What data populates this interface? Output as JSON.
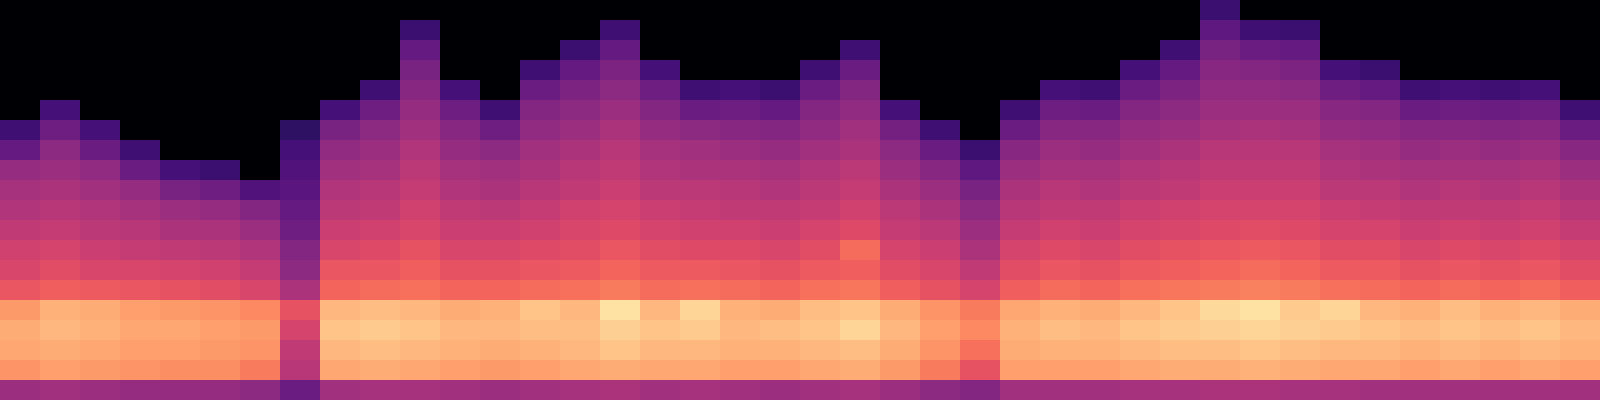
{
  "chart_data": {
    "type": "heatmap",
    "color": "magma",
    "tick_labels": false,
    "zlim": [
      -80,
      0
    ],
    "z": [
      [
        -80,
        -80,
        -80,
        -80,
        -80,
        -80,
        -63,
        -56,
        -46,
        -43,
        -41,
        -38,
        -35,
        -33,
        -29,
        -17,
        -14,
        -15,
        -18,
        -45
      ],
      [
        -80,
        -80,
        -80,
        -80,
        -80,
        -62,
        -54,
        -48,
        -45,
        -42,
        -40,
        -37,
        -34,
        -31,
        -27,
        -13,
        -12,
        -14,
        -16,
        -44
      ],
      [
        -80,
        -80,
        -80,
        -80,
        -80,
        -80,
        -62,
        -55,
        -47,
        -44,
        -41,
        -39,
        -36,
        -33,
        -28,
        -14,
        -13,
        -15,
        -17,
        -45
      ],
      [
        -80,
        -80,
        -80,
        -80,
        -80,
        -80,
        -80,
        -63,
        -55,
        -46,
        -43,
        -40,
        -37,
        -33,
        -29,
        -16,
        -15,
        -16,
        -18,
        -46
      ],
      [
        -80,
        -80,
        -80,
        -80,
        -80,
        -80,
        -80,
        -80,
        -62,
        -52,
        -45,
        -42,
        -38,
        -34,
        -30,
        -17,
        -15,
        -16,
        -19,
        -46
      ],
      [
        -80,
        -80,
        -80,
        -80,
        -80,
        -80,
        -80,
        -80,
        -64,
        -54,
        -46,
        -42,
        -39,
        -35,
        -31,
        -18,
        -16,
        -17,
        -19,
        -46
      ],
      [
        -80,
        -80,
        -80,
        -80,
        -80,
        -80,
        -80,
        -80,
        -80,
        -60,
        -50,
        -45,
        -41,
        -37,
        -33,
        -20,
        -17,
        -18,
        -22,
        -48
      ],
      [
        -80,
        -80,
        -80,
        -80,
        -80,
        -80,
        -66,
        -62,
        -60,
        -58,
        -56,
        -54,
        -50,
        -48,
        -42,
        -30,
        -34,
        -38,
        -40,
        -55
      ],
      [
        -80,
        -80,
        -80,
        -80,
        -80,
        -62,
        -52,
        -47,
        -44,
        -41,
        -39,
        -36,
        -33,
        -29,
        -26,
        -12,
        -10,
        -12,
        -15,
        -44
      ],
      [
        -80,
        -80,
        -80,
        -80,
        -63,
        -54,
        -48,
        -45,
        -43,
        -40,
        -38,
        -35,
        -32,
        -29,
        -25,
        -11,
        -9,
        -11,
        -14,
        -43
      ],
      [
        -80,
        -64,
        -56,
        -52,
        -49,
        -46,
        -44,
        -41,
        -39,
        -37,
        -35,
        -33,
        -30,
        -27,
        -24,
        -12,
        -10,
        -12,
        -15,
        -43
      ],
      [
        -80,
        -80,
        -80,
        -80,
        -62,
        -54,
        -49,
        -46,
        -43,
        -41,
        -38,
        -36,
        -33,
        -30,
        -26,
        -14,
        -12,
        -13,
        -16,
        -44
      ],
      [
        -80,
        -80,
        -80,
        -80,
        -80,
        -63,
        -54,
        -48,
        -44,
        -42,
        -39,
        -36,
        -33,
        -30,
        -26,
        -13,
        -12,
        -14,
        -17,
        -45
      ],
      [
        -80,
        -80,
        -80,
        -63,
        -55,
        -50,
        -47,
        -44,
        -42,
        -40,
        -37,
        -35,
        -32,
        -29,
        -25,
        -10,
        -11,
        -13,
        -16,
        -44
      ],
      [
        -80,
        -80,
        -64,
        -56,
        -51,
        -48,
        -45,
        -42,
        -40,
        -38,
        -35,
        -33,
        -31,
        -28,
        -24,
        -12,
        -11,
        -12,
        -15,
        -43
      ],
      [
        -80,
        -63,
        -56,
        -51,
        -48,
        -45,
        -42,
        -40,
        -38,
        -36,
        -34,
        -32,
        -29,
        -26,
        -22,
        -5,
        -8,
        -10,
        -14,
        -42
      ],
      [
        -80,
        -80,
        -80,
        -62,
        -54,
        -50,
        -46,
        -43,
        -41,
        -39,
        -36,
        -34,
        -31,
        -28,
        -25,
        -12,
        -10,
        -12,
        -15,
        -44
      ],
      [
        -80,
        -80,
        -80,
        -80,
        -63,
        -55,
        -48,
        -44,
        -42,
        -39,
        -37,
        -35,
        -32,
        -28,
        -24,
        -7,
        -9,
        -12,
        -15,
        -43
      ],
      [
        -80,
        -80,
        -80,
        -80,
        -62,
        -54,
        -49,
        -45,
        -42,
        -40,
        -38,
        -35,
        -32,
        -29,
        -25,
        -13,
        -12,
        -13,
        -16,
        -44
      ],
      [
        -80,
        -80,
        -80,
        -80,
        -64,
        -56,
        -50,
        -46,
        -43,
        -41,
        -38,
        -36,
        -33,
        -30,
        -26,
        -14,
        -11,
        -13,
        -16,
        -45
      ],
      [
        -80,
        -80,
        -80,
        -63,
        -55,
        -50,
        -47,
        -44,
        -41,
        -39,
        -37,
        -34,
        -31,
        -28,
        -24,
        -11,
        -10,
        -12,
        -15,
        -44
      ],
      [
        -80,
        -80,
        -63,
        -55,
        -50,
        -47,
        -44,
        -42,
        -39,
        -37,
        -35,
        -32,
        -25,
        -27,
        -23,
        -10,
        -7,
        -11,
        -14,
        -43
      ],
      [
        -80,
        -80,
        -80,
        -80,
        -80,
        -62,
        -53,
        -48,
        -45,
        -42,
        -39,
        -37,
        -34,
        -31,
        -27,
        -14,
        -12,
        -14,
        -17,
        -45
      ],
      [
        -80,
        -80,
        -80,
        -80,
        -80,
        -80,
        -63,
        -55,
        -49,
        -45,
        -42,
        -39,
        -36,
        -33,
        -30,
        -18,
        -16,
        -18,
        -22,
        -48
      ],
      [
        -80,
        -80,
        -80,
        -80,
        -80,
        -80,
        -80,
        -64,
        -57,
        -52,
        -48,
        -45,
        -42,
        -38,
        -34,
        -22,
        -20,
        -24,
        -30,
        -50
      ],
      [
        -80,
        -80,
        -80,
        -80,
        -80,
        -63,
        -55,
        -49,
        -45,
        -42,
        -40,
        -37,
        -34,
        -31,
        -27,
        -15,
        -13,
        -14,
        -16,
        -44
      ],
      [
        -80,
        -80,
        -80,
        -80,
        -62,
        -54,
        -49,
        -45,
        -43,
        -40,
        -38,
        -35,
        -32,
        -29,
        -25,
        -13,
        -11,
        -13,
        -16,
        -44
      ],
      [
        -80,
        -80,
        -80,
        -80,
        -63,
        -55,
        -49,
        -46,
        -43,
        -41,
        -38,
        -36,
        -33,
        -30,
        -26,
        -14,
        -12,
        -13,
        -16,
        -44
      ],
      [
        -80,
        -80,
        -80,
        -62,
        -55,
        -50,
        -46,
        -44,
        -41,
        -39,
        -36,
        -34,
        -31,
        -28,
        -24,
        -12,
        -10,
        -12,
        -15,
        -43
      ],
      [
        -80,
        -80,
        -63,
        -56,
        -51,
        -48,
        -45,
        -42,
        -40,
        -38,
        -35,
        -33,
        -30,
        -27,
        -23,
        -10,
        -9,
        -11,
        -14,
        -43
      ],
      [
        -64,
        -57,
        -52,
        -49,
        -47,
        -45,
        -43,
        -40,
        -38,
        -36,
        -34,
        -32,
        -29,
        -26,
        -22,
        -6,
        -8,
        -11,
        -14,
        -42
      ],
      [
        -80,
        -63,
        -55,
        -50,
        -47,
        -45,
        -42,
        -40,
        -38,
        -36,
        -34,
        -31,
        -28,
        -25,
        -21,
        -5,
        -7,
        -10,
        -13,
        -42
      ],
      [
        -80,
        -64,
        -56,
        -51,
        -48,
        -45,
        -43,
        -40,
        -38,
        -36,
        -34,
        -32,
        -29,
        -26,
        -22,
        -9,
        -8,
        -11,
        -14,
        -43
      ],
      [
        -80,
        -80,
        -80,
        -62,
        -54,
        -49,
        -46,
        -43,
        -41,
        -39,
        -36,
        -34,
        -31,
        -28,
        -24,
        -7,
        -9,
        -12,
        -15,
        -43
      ],
      [
        -80,
        -80,
        -80,
        -64,
        -56,
        -50,
        -47,
        -44,
        -42,
        -39,
        -37,
        -34,
        -31,
        -28,
        -25,
        -12,
        -10,
        -12,
        -15,
        -44
      ],
      [
        -80,
        -80,
        -80,
        -80,
        -63,
        -55,
        -49,
        -46,
        -43,
        -41,
        -38,
        -36,
        -33,
        -30,
        -26,
        -13,
        -11,
        -13,
        -16,
        -44
      ],
      [
        -80,
        -80,
        -80,
        -80,
        -62,
        -54,
        -49,
        -45,
        -43,
        -40,
        -38,
        -35,
        -32,
        -29,
        -25,
        -11,
        -10,
        -12,
        -15,
        -44
      ],
      [
        -80,
        -80,
        -80,
        -80,
        -63,
        -55,
        -50,
        -46,
        -43,
        -41,
        -38,
        -36,
        -33,
        -30,
        -26,
        -13,
        -11,
        -13,
        -16,
        -44
      ],
      [
        -80,
        -80,
        -80,
        -80,
        -62,
        -54,
        -49,
        -45,
        -42,
        -40,
        -37,
        -35,
        -32,
        -29,
        -25,
        -12,
        -10,
        -12,
        -15,
        -44
      ],
      [
        -80,
        -80,
        -80,
        -80,
        -80,
        -63,
        -55,
        -49,
        -45,
        -42,
        -40,
        -37,
        -34,
        -31,
        -27,
        -14,
        -12,
        -13,
        -16,
        -44
      ]
    ]
  }
}
